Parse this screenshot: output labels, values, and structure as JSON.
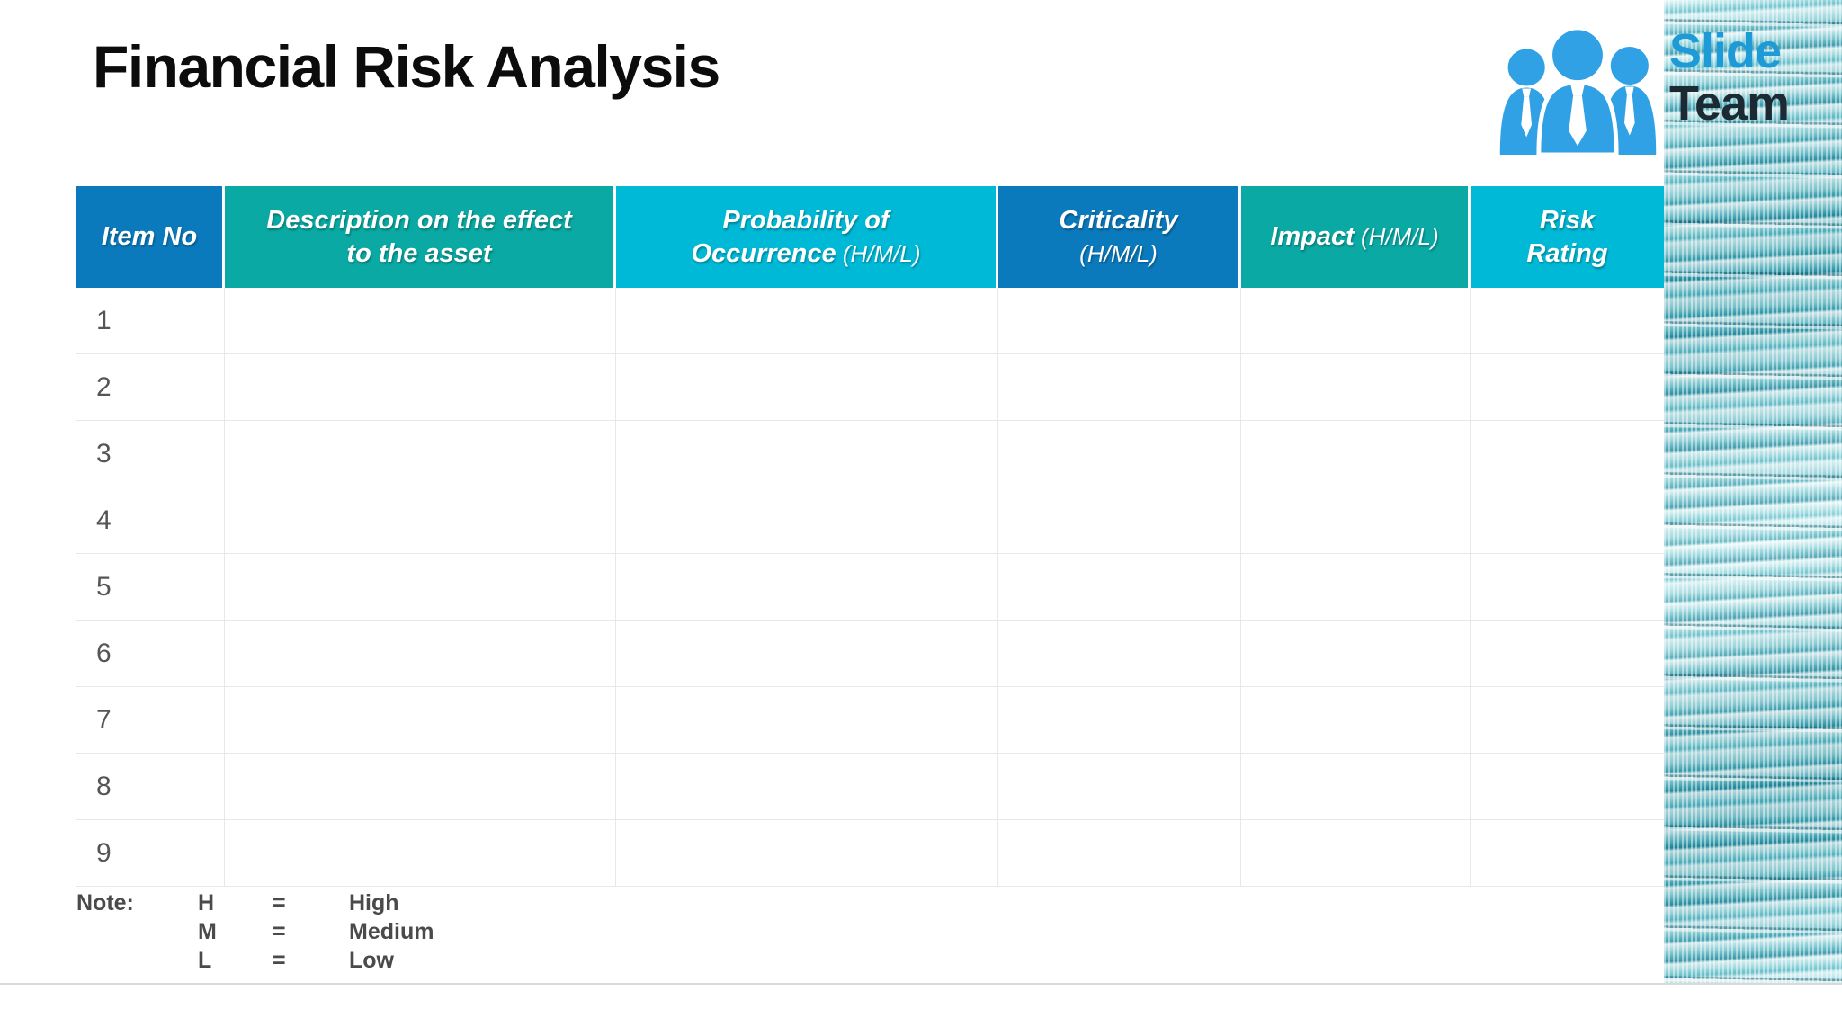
{
  "slide": {
    "title": "Financial Risk Analysis",
    "background_color": "#ffffff",
    "bottom_edge_color": "#d9d9d9"
  },
  "logo": {
    "name": "SlideTeam",
    "text_line1": "Slide",
    "text_line2": "Team",
    "people_color": "#31a1e6",
    "text_color_line1": "#1e9bd7",
    "text_color_line2": "#1c2a33"
  },
  "colors": {
    "header_blue": "#0b7abc",
    "header_teal": "#0aa9a4",
    "header_cyan": "#00b9d6",
    "grid_line": "#e8e8e8",
    "row_number_text": "#555555",
    "note_text": "#4a4a4a",
    "coin_image_tint": "#8ed5db"
  },
  "table": {
    "headers": [
      {
        "bg": "#0b7abc",
        "lines": [
          [
            {
              "t": "Item No",
              "b": true
            }
          ]
        ]
      },
      {
        "bg": "#0aa9a4",
        "lines": [
          [
            {
              "t": "Description on the effect",
              "b": true
            }
          ],
          [
            {
              "t": "to the asset",
              "b": true
            }
          ]
        ]
      },
      {
        "bg": "#00b9d6",
        "lines": [
          [
            {
              "t": "Probability of",
              "b": true
            }
          ],
          [
            {
              "t": "Occurrence",
              "b": true
            },
            {
              "t": " (H/M/L)",
              "b": false
            }
          ]
        ]
      },
      {
        "bg": "#0b7abc",
        "lines": [
          [
            {
              "t": "Criticality",
              "b": true
            }
          ],
          [
            {
              "t": "(H/M/L)",
              "b": false
            }
          ]
        ]
      },
      {
        "bg": "#0aa9a4",
        "lines": [
          [
            {
              "t": "Impact",
              "b": true
            },
            {
              "t": " (H/M/L)",
              "b": false
            }
          ]
        ]
      },
      {
        "bg": "#00b9d6",
        "lines": [
          [
            {
              "t": "Risk",
              "b": true
            }
          ],
          [
            {
              "t": "Rating",
              "b": true
            }
          ]
        ]
      }
    ],
    "rows": [
      {
        "item_no": "1"
      },
      {
        "item_no": "2"
      },
      {
        "item_no": "3"
      },
      {
        "item_no": "4"
      },
      {
        "item_no": "5"
      },
      {
        "item_no": "6"
      },
      {
        "item_no": "7"
      },
      {
        "item_no": "8"
      },
      {
        "item_no": "9"
      }
    ],
    "columns_per_row": 6
  },
  "note": {
    "label": "Note:",
    "entries": [
      {
        "key": "H",
        "eq": "=",
        "value": "High"
      },
      {
        "key": "M",
        "eq": "=",
        "value": "Medium"
      },
      {
        "key": "L",
        "eq": "=",
        "value": "Low"
      }
    ]
  }
}
